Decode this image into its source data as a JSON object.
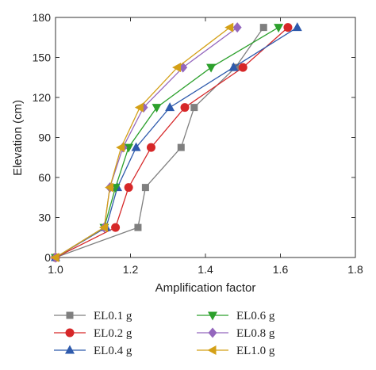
{
  "chart_data": {
    "type": "line",
    "xlabel": "Amplification factor",
    "ylabel": "Elevation (cm)",
    "xlim": [
      1.0,
      1.8
    ],
    "ylim": [
      0,
      180
    ],
    "xticks": [
      "1.0",
      "1.2",
      "1.4",
      "1.6",
      "1.8"
    ],
    "yticks": [
      "0",
      "30",
      "60",
      "90",
      "120",
      "150",
      "180"
    ],
    "grid": false,
    "legend_placement": "bottom",
    "series": [
      {
        "name": "EL0.1 g",
        "color": "#7f7f7f",
        "marker": "square",
        "points": [
          [
            1.0,
            0
          ],
          [
            1.22,
            22.5
          ],
          [
            1.24,
            52.5
          ],
          [
            1.335,
            82.5
          ],
          [
            1.37,
            112.5
          ],
          [
            1.48,
            142.5
          ],
          [
            1.555,
            172.5
          ]
        ]
      },
      {
        "name": "EL0.2 g",
        "color": "#d62728",
        "marker": "circle",
        "points": [
          [
            1.0,
            0
          ],
          [
            1.16,
            22.5
          ],
          [
            1.195,
            52.5
          ],
          [
            1.255,
            82.5
          ],
          [
            1.345,
            112.5
          ],
          [
            1.5,
            142.5
          ],
          [
            1.62,
            172.5
          ]
        ]
      },
      {
        "name": "EL0.4 g",
        "color": "#2e5aac",
        "marker": "triangle-up",
        "points": [
          [
            1.0,
            0
          ],
          [
            1.135,
            22.5
          ],
          [
            1.165,
            52.5
          ],
          [
            1.215,
            82.5
          ],
          [
            1.305,
            112.5
          ],
          [
            1.475,
            142.5
          ],
          [
            1.645,
            172.5
          ]
        ]
      },
      {
        "name": "EL0.6 g",
        "color": "#2ca02c",
        "marker": "triangle-down",
        "points": [
          [
            1.0,
            0
          ],
          [
            1.13,
            22.5
          ],
          [
            1.16,
            52.5
          ],
          [
            1.195,
            82.5
          ],
          [
            1.27,
            112.5
          ],
          [
            1.415,
            142.5
          ],
          [
            1.595,
            172.5
          ]
        ]
      },
      {
        "name": "EL0.8 g",
        "color": "#9467bd",
        "marker": "diamond",
        "points": [
          [
            1.0,
            0
          ],
          [
            1.13,
            22.5
          ],
          [
            1.145,
            52.5
          ],
          [
            1.18,
            82.5
          ],
          [
            1.235,
            112.5
          ],
          [
            1.34,
            142.5
          ],
          [
            1.485,
            172.5
          ]
        ]
      },
      {
        "name": "EL1.0 g",
        "color": "#d4a017",
        "marker": "triangle-left",
        "points": [
          [
            1.0,
            0
          ],
          [
            1.13,
            22.5
          ],
          [
            1.145,
            52.5
          ],
          [
            1.175,
            82.5
          ],
          [
            1.225,
            112.5
          ],
          [
            1.325,
            142.5
          ],
          [
            1.465,
            172.5
          ]
        ]
      }
    ]
  }
}
